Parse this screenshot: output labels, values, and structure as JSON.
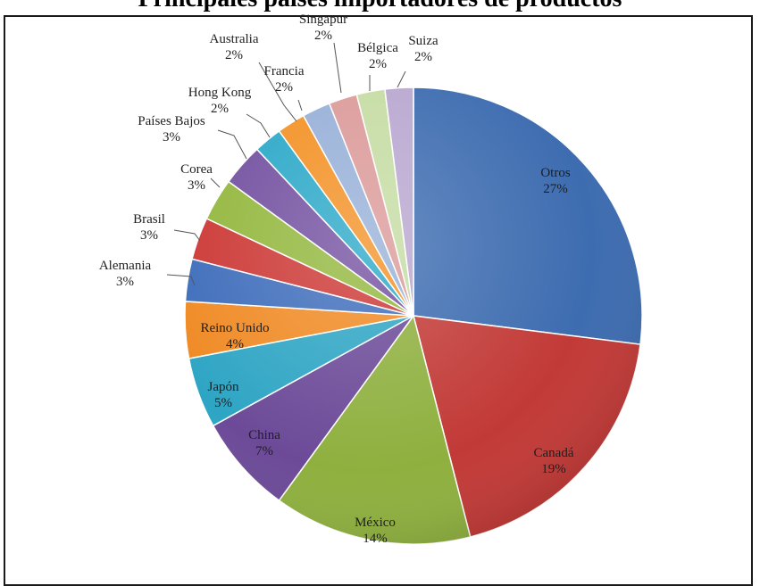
{
  "title": "Principales países importadores de productos",
  "chart_data": {
    "type": "pie",
    "slices": [
      {
        "name": "Otros",
        "value": 27,
        "label": "27%",
        "color": "#3d6cb0"
      },
      {
        "name": "Canadá",
        "value": 19,
        "label": "19%",
        "color": "#c23a37"
      },
      {
        "name": "México",
        "value": 14,
        "label": "14%",
        "color": "#8fb03f"
      },
      {
        "name": "China",
        "value": 7,
        "label": "7%",
        "color": "#6c4a98"
      },
      {
        "name": "Japón",
        "value": 5,
        "label": "5%",
        "color": "#2ea5c4"
      },
      {
        "name": "Reino Unido",
        "value": 4,
        "label": "4%",
        "color": "#f08a24"
      },
      {
        "name": "Alemania",
        "value": 3,
        "label": "3%",
        "color": "#3e6dbb"
      },
      {
        "name": "Brasil",
        "value": 3,
        "label": "3%",
        "color": "#cc3835"
      },
      {
        "name": "Corea",
        "value": 3,
        "label": "3%",
        "color": "#93b73d"
      },
      {
        "name": "Países Bajos",
        "value": 3,
        "label": "3%",
        "color": "#7350a0"
      },
      {
        "name": "Hong Kong",
        "value": 2,
        "label": "2%",
        "color": "#2ba8c8"
      },
      {
        "name": "Australia",
        "value": 2,
        "label": "2%",
        "color": "#f39125"
      },
      {
        "name": "Francia",
        "value": 2,
        "label": "2%",
        "color": "#97b0d8"
      },
      {
        "name": "Singapur",
        "value": 2,
        "label": "2%",
        "color": "#db9a99"
      },
      {
        "name": "Bélgica",
        "value": 2,
        "label": "2%",
        "color": "#c5dca3"
      },
      {
        "name": "Suiza",
        "value": 2,
        "label": "2%",
        "color": "#b9a7d0"
      }
    ]
  }
}
